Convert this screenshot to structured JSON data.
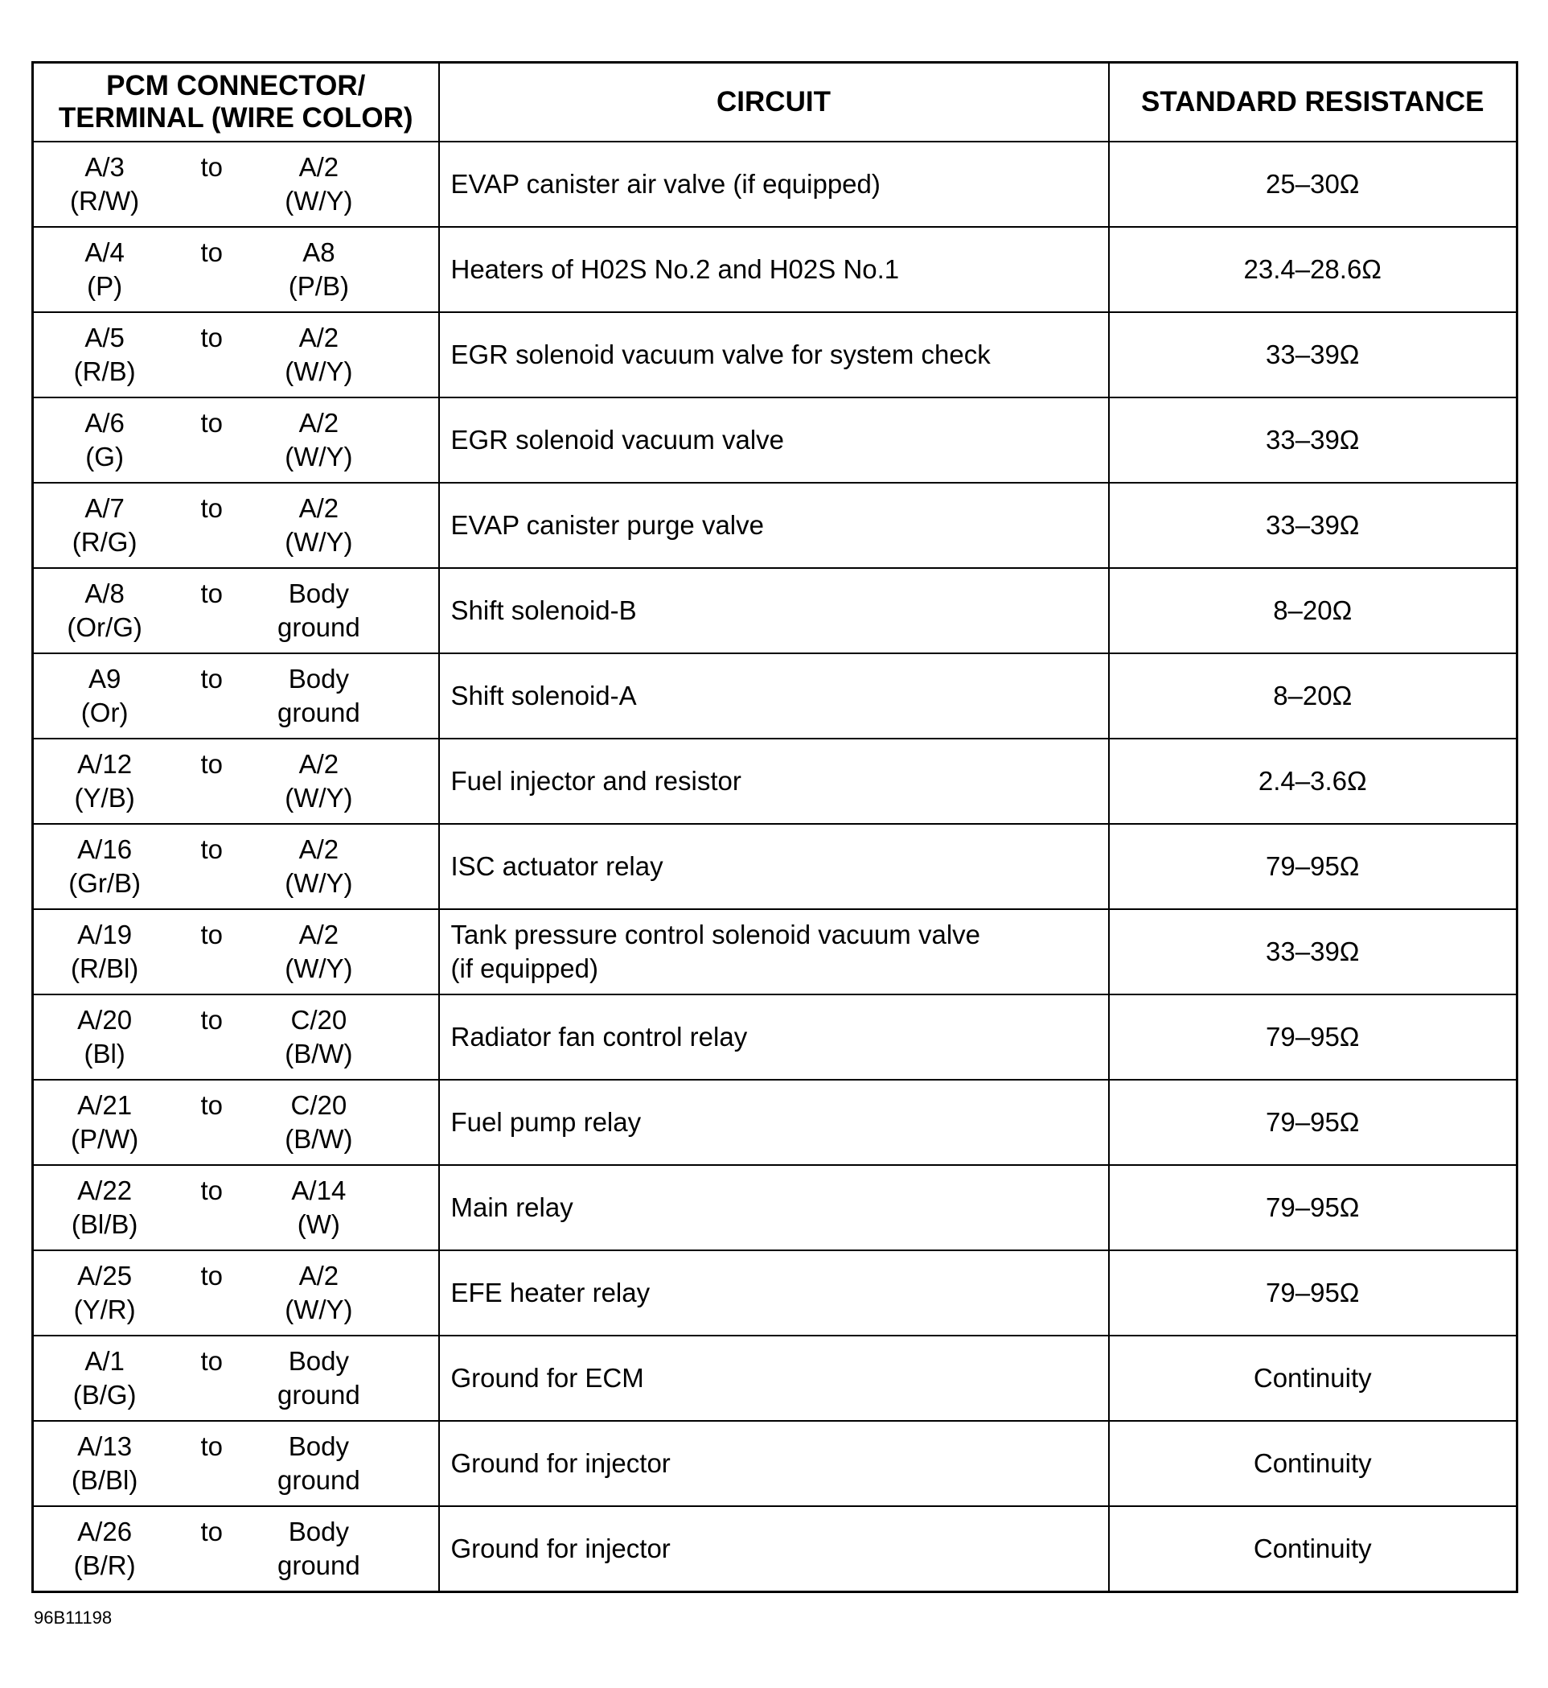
{
  "headers": {
    "terminal_line1": "PCM CONNECTOR/",
    "terminal_line2": "TERMINAL (WIRE COLOR)",
    "circuit": "CIRCUIT",
    "resistance": "STANDARD RESISTANCE"
  },
  "rows": [
    {
      "from": "A/3",
      "from_color": "(R/W)",
      "to": "to",
      "dest": "A/2",
      "dest_color": "(W/Y)",
      "circuit": "EVAP canister air valve (if equipped)",
      "resistance": "25–30Ω"
    },
    {
      "from": "A/4",
      "from_color": "(P)",
      "to": "to",
      "dest": "A8",
      "dest_color": "(P/B)",
      "circuit": "Heaters of H02S  No.2 and H02S  No.1",
      "resistance": "23.4–28.6Ω"
    },
    {
      "from": "A/5",
      "from_color": "(R/B)",
      "to": "to",
      "dest": "A/2",
      "dest_color": "(W/Y)",
      "circuit": "EGR solenoid vacuum valve for system check",
      "resistance": "33–39Ω"
    },
    {
      "from": "A/6",
      "from_color": "(G)",
      "to": "to",
      "dest": "A/2",
      "dest_color": "(W/Y)",
      "circuit": "EGR solenoid vacuum valve",
      "resistance": "33–39Ω"
    },
    {
      "from": "A/7",
      "from_color": "(R/G)",
      "to": "to",
      "dest": "A/2",
      "dest_color": "(W/Y)",
      "circuit": "EVAP canister purge valve",
      "resistance": "33–39Ω"
    },
    {
      "from": "A/8",
      "from_color": "(Or/G)",
      "to": "to",
      "dest": "Body",
      "dest_color": "ground",
      "circuit": "Shift solenoid-B",
      "resistance": "8–20Ω"
    },
    {
      "from": "A9",
      "from_color": "(Or)",
      "to": "to",
      "dest": "Body",
      "dest_color": "ground",
      "circuit": "Shift solenoid-A",
      "resistance": "8–20Ω"
    },
    {
      "from": "A/12",
      "from_color": "(Y/B)",
      "to": "to",
      "dest": "A/2",
      "dest_color": "(W/Y)",
      "circuit": "Fuel injector and resistor",
      "resistance": "2.4–3.6Ω"
    },
    {
      "from": "A/16",
      "from_color": "(Gr/B)",
      "to": "to",
      "dest": "A/2",
      "dest_color": "(W/Y)",
      "circuit": "ISC actuator relay",
      "resistance": "79–95Ω"
    },
    {
      "from": "A/19",
      "from_color": "(R/Bl)",
      "to": "to",
      "dest": "A/2",
      "dest_color": "(W/Y)",
      "circuit": "Tank pressure control solenoid vacuum valve",
      "circuit_line2": "(if equipped)",
      "resistance": "33–39Ω"
    },
    {
      "from": "A/20",
      "from_color": "(Bl)",
      "to": "to",
      "dest": "C/20",
      "dest_color": "(B/W)",
      "circuit": "Radiator fan control relay",
      "resistance": "79–95Ω"
    },
    {
      "from": "A/21",
      "from_color": "(P/W)",
      "to": "to",
      "dest": "C/20",
      "dest_color": "(B/W)",
      "circuit": "Fuel pump relay",
      "resistance": "79–95Ω"
    },
    {
      "from": "A/22",
      "from_color": "(Bl/B)",
      "to": "to",
      "dest": "A/14",
      "dest_color": "(W)",
      "circuit": "Main relay",
      "resistance": "79–95Ω"
    },
    {
      "from": "A/25",
      "from_color": "(Y/R)",
      "to": "to",
      "dest": "A/2",
      "dest_color": "(W/Y)",
      "circuit": "EFE heater relay",
      "resistance": "79–95Ω"
    },
    {
      "from": "A/1",
      "from_color": "(B/G)",
      "to": "to",
      "dest": "Body",
      "dest_color": "ground",
      "circuit": "Ground for ECM",
      "resistance": "Continuity"
    },
    {
      "from": "A/13",
      "from_color": "(B/Bl)",
      "to": "to",
      "dest": "Body",
      "dest_color": "ground",
      "circuit": "Ground for injector",
      "resistance": "Continuity"
    },
    {
      "from": "A/26",
      "from_color": "(B/R)",
      "to": "to",
      "dest": "Body",
      "dest_color": "ground",
      "circuit": "Ground for injector",
      "resistance": "Continuity"
    }
  ],
  "figure_code": "96B11198"
}
